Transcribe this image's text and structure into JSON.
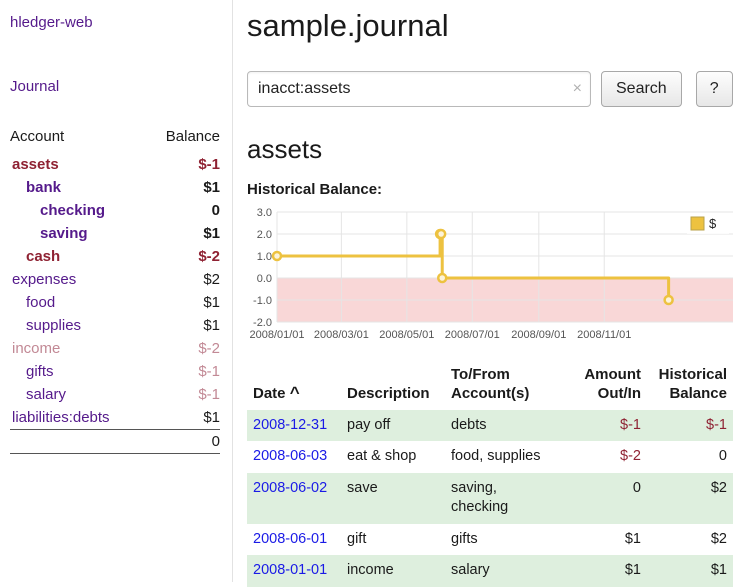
{
  "colors": {
    "purple": "#551A8B",
    "red": "#8F2233",
    "rose": "#C28995",
    "black": "#1A1A1A",
    "blue": "#1A1AE6",
    "stripe_green": "#DEEFDE"
  },
  "app": {
    "title": "hledger-web",
    "nav_journal": "Journal"
  },
  "sidebar": {
    "headers": {
      "account": "Account",
      "balance": "Balance"
    },
    "accounts": [
      {
        "name": "assets",
        "indent": 0,
        "bold": true,
        "name_color": "red",
        "balance": "$-1",
        "balance_color": "red"
      },
      {
        "name": "bank",
        "indent": 1,
        "bold": true,
        "name_color": "purple",
        "balance": "$1",
        "balance_color": "black"
      },
      {
        "name": "checking",
        "indent": 2,
        "bold": true,
        "name_color": "purple",
        "balance": "0",
        "balance_color": "black"
      },
      {
        "name": "saving",
        "indent": 2,
        "bold": true,
        "name_color": "purple",
        "balance": "$1",
        "balance_color": "black"
      },
      {
        "name": "cash",
        "indent": 1,
        "bold": true,
        "name_color": "red",
        "balance": "$-2",
        "balance_color": "red"
      },
      {
        "name": "expenses",
        "indent": 0,
        "bold": false,
        "name_color": "purple",
        "balance": "$2",
        "balance_color": "black"
      },
      {
        "name": "food",
        "indent": 1,
        "bold": false,
        "name_color": "purple",
        "balance": "$1",
        "balance_color": "black"
      },
      {
        "name": "supplies",
        "indent": 1,
        "bold": false,
        "name_color": "purple",
        "balance": "$1",
        "balance_color": "black"
      },
      {
        "name": "income",
        "indent": 0,
        "bold": false,
        "name_color": "rose",
        "balance": "$-2",
        "balance_color": "rose"
      },
      {
        "name": "gifts",
        "indent": 1,
        "bold": false,
        "name_color": "purple",
        "balance": "$-1",
        "balance_color": "rose"
      },
      {
        "name": "salary",
        "indent": 1,
        "bold": false,
        "name_color": "purple",
        "balance": "$-1",
        "balance_color": "rose"
      },
      {
        "name": "liabilities:debts",
        "indent": 0,
        "bold": false,
        "name_color": "purple",
        "balance": "$1",
        "balance_color": "black"
      }
    ],
    "total": "0"
  },
  "main": {
    "title": "sample.journal",
    "search": {
      "value": "inacct:assets",
      "clear_icon": "×",
      "button_label": "Search",
      "help_label": "?"
    },
    "account_heading": "assets",
    "chart_label": "Historical Balance:"
  },
  "chart_data": {
    "type": "line",
    "step": true,
    "title": "Historical Balance",
    "x_range": [
      "2008-01-01",
      "2009-03-01"
    ],
    "ylim": [
      -2,
      3
    ],
    "yticks": [
      3,
      2,
      1,
      0,
      -1,
      -2
    ],
    "xticks": [
      {
        "date": "2008-01-01",
        "label": "2008/01/01"
      },
      {
        "date": "2008-03-01",
        "label": "2008/03/01"
      },
      {
        "date": "2008-05-01",
        "label": "2008/05/01"
      },
      {
        "date": "2008-07-01",
        "label": "2008/07/01"
      },
      {
        "date": "2008-09-01",
        "label": "2008/09/01"
      },
      {
        "date": "2008-11-01",
        "label": "2008/11/01"
      }
    ],
    "series": [
      {
        "name": "$",
        "points": [
          {
            "date": "2008-01-01",
            "value": 1
          },
          {
            "date": "2008-06-01",
            "value": 2
          },
          {
            "date": "2008-06-02",
            "value": 2
          },
          {
            "date": "2008-06-03",
            "value": 0
          },
          {
            "date": "2008-12-31",
            "value": -1
          }
        ]
      }
    ],
    "legend_position": "top-right",
    "colors": {
      "line": "#EDC240",
      "point_fill": "#FCF3DA",
      "negative_region": "#F9D7D7",
      "grid": "#E5E5E5"
    }
  },
  "register": {
    "sort_icon": "^",
    "headers": {
      "date": "Date",
      "description": "Description",
      "accounts": "To/From Account(s)",
      "amount": "Amount Out/In",
      "balance": "Historical Balance"
    },
    "rows": [
      {
        "date": "2008-12-31",
        "desc": "pay off",
        "accounts": "debts",
        "amount": "$-1",
        "amount_neg": true,
        "balance": "$-1",
        "balance_neg": true
      },
      {
        "date": "2008-06-03",
        "desc": "eat & shop",
        "accounts": "food, supplies",
        "amount": "$-2",
        "amount_neg": true,
        "balance": "0",
        "balance_neg": false
      },
      {
        "date": "2008-06-02",
        "desc": "save",
        "accounts": "saving, checking",
        "amount": "0",
        "amount_neg": false,
        "balance": "$2",
        "balance_neg": false
      },
      {
        "date": "2008-06-01",
        "desc": "gift",
        "accounts": "gifts",
        "amount": "$1",
        "amount_neg": false,
        "balance": "$2",
        "balance_neg": false
      },
      {
        "date": "2008-01-01",
        "desc": "income",
        "accounts": "salary",
        "amount": "$1",
        "amount_neg": false,
        "balance": "$1",
        "balance_neg": false
      }
    ]
  }
}
